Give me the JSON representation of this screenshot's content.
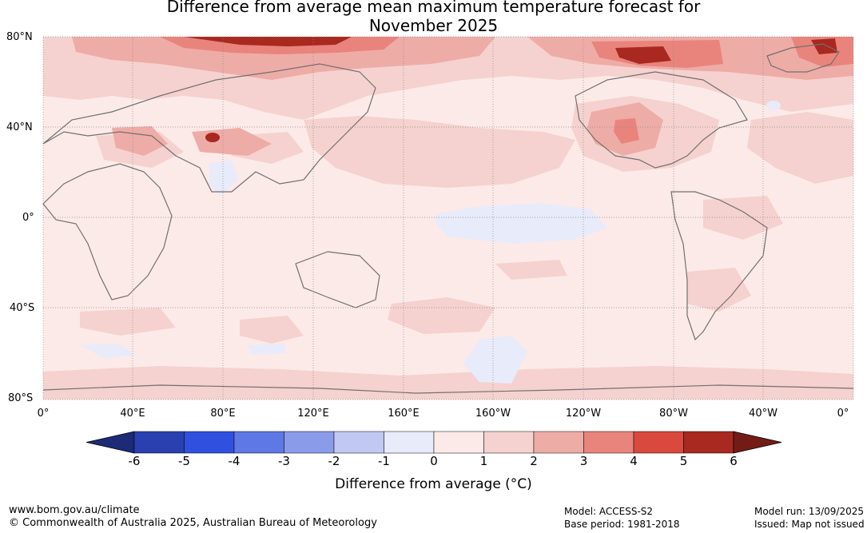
{
  "title_line1": "Difference from average mean maximum temperature forecast for",
  "title_line2": "November 2025",
  "lat_labels": [
    "80°N",
    "40°N",
    "0°",
    "40°S",
    "80°S"
  ],
  "lon_labels": [
    "0°",
    "40°E",
    "80°E",
    "120°E",
    "160°E",
    "160°W",
    "120°W",
    "80°W",
    "40°W",
    "0°"
  ],
  "colorbar": {
    "ticks": [
      "-6",
      "-5",
      "-4",
      "-3",
      "-2",
      "-1",
      "0",
      "1",
      "2",
      "3",
      "4",
      "5",
      "6"
    ],
    "colors": [
      "#1c2a78",
      "#2a3fb0",
      "#3050e0",
      "#5e78e6",
      "#8a9ce9",
      "#c1c9f2",
      "#e8ebfa",
      "#fceae8",
      "#f5d2cf",
      "#eeaca7",
      "#e9847c",
      "#d9493d",
      "#a92820",
      "#731c16"
    ],
    "label": "Difference from average (°C)"
  },
  "footer": {
    "website": "www.bom.gov.au/climate",
    "copyright": "© Commonwealth of Australia 2025, Australian Bureau of Meteorology",
    "model": "Model: ACCESS-S2",
    "base_period": "Base period: 1981-2018",
    "model_run": "Model run: 13/09/2025",
    "issued": "Issued: Map not issued"
  }
}
